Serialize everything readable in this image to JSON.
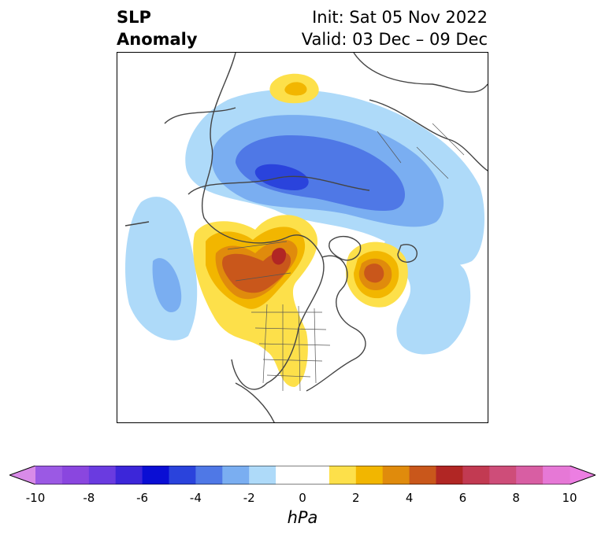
{
  "title": {
    "left_line1": "SLP",
    "left_line2": "Anomaly",
    "right_line1": "Init: Sat 05 Nov 2022",
    "right_line2": "Valid: 03 Dec – 09 Dec"
  },
  "colorbar": {
    "unit": "hPa",
    "tick_labels": [
      "-10",
      "-8",
      "-6",
      "-4",
      "-2",
      "0",
      "2",
      "4",
      "6",
      "8",
      "10"
    ],
    "bins": [
      {
        "from": -10,
        "to": -9,
        "color": "#9b59e4"
      },
      {
        "from": -9,
        "to": -8,
        "color": "#8a46df"
      },
      {
        "from": -8,
        "to": -7,
        "color": "#6a3be0"
      },
      {
        "from": -7,
        "to": -6,
        "color": "#3c26d9"
      },
      {
        "from": -6,
        "to": -5,
        "color": "#0a0ed4"
      },
      {
        "from": -5,
        "to": -4,
        "color": "#2a43dc"
      },
      {
        "from": -4,
        "to": -3,
        "color": "#4f78e6"
      },
      {
        "from": -3,
        "to": -2,
        "color": "#7aaef1"
      },
      {
        "from": -2,
        "to": -1,
        "color": "#aedaf9"
      },
      {
        "from": -1,
        "to": 1,
        "color": "#ffffff"
      },
      {
        "from": 1,
        "to": 2,
        "color": "#fde04a"
      },
      {
        "from": 2,
        "to": 3,
        "color": "#f2b600"
      },
      {
        "from": 3,
        "to": 4,
        "color": "#e08b0c"
      },
      {
        "from": 4,
        "to": 5,
        "color": "#c9571b"
      },
      {
        "from": 5,
        "to": 6,
        "color": "#b12624"
      },
      {
        "from": 6,
        "to": 7,
        "color": "#c23a52"
      },
      {
        "from": 7,
        "to": 8,
        "color": "#ce4d79"
      },
      {
        "from": 8,
        "to": 9,
        "color": "#d85ea3"
      },
      {
        "from": 9,
        "to": 10,
        "color": "#e678d6"
      }
    ],
    "under_color": "#d98be8",
    "over_color": "#ec7ee2"
  }
}
